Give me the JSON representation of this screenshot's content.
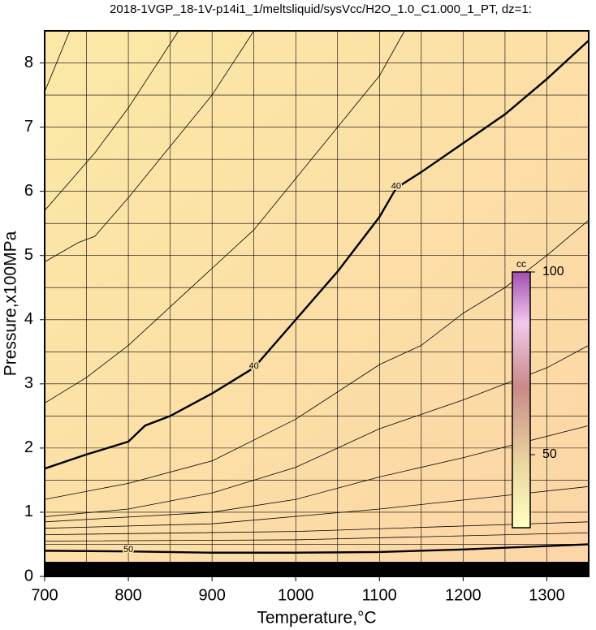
{
  "chart_data": {
    "type": "contour",
    "title": "2018-1VGP_18-1V-p14i1_1/meltsliquid/sysVcc/H2O_1.0_C1.000_1_PT, dz=1:",
    "x_label": "Temperature,°C",
    "y_label": "Pressure,x100MPa",
    "xlim": [
      700,
      1350
    ],
    "ylim": [
      0,
      8.5
    ],
    "xticks": [
      700,
      800,
      900,
      1000,
      1100,
      1200,
      1300
    ],
    "yticks": [
      0,
      1,
      2,
      3,
      4,
      5,
      6,
      7,
      8
    ],
    "xgrid": [
      750,
      800,
      850,
      900,
      950,
      1000,
      1050,
      1100,
      1150,
      1200,
      1250,
      1300
    ],
    "ygrid": [
      0.5,
      1,
      1.5,
      2,
      2.5,
      3,
      3.5,
      4,
      4.5,
      5,
      5.5,
      6,
      6.5,
      7,
      7.5,
      8
    ],
    "contours": [
      {
        "label": "40",
        "x": [
          700,
          750,
          800,
          820,
          850,
          900,
          950,
          1000,
          1050,
          1100,
          1120,
          1150,
          1200,
          1250,
          1300,
          1350
        ],
        "y": [
          1.68,
          1.9,
          2.1,
          2.35,
          2.5,
          2.85,
          3.25,
          4.0,
          4.75,
          5.6,
          6.05,
          6.3,
          6.75,
          7.2,
          7.75,
          8.35
        ]
      },
      {
        "label": "50",
        "x": [
          700,
          800,
          900,
          1000,
          1100,
          1200,
          1350
        ],
        "y": [
          0.4,
          0.39,
          0.37,
          0.37,
          0.38,
          0.42,
          0.5
        ]
      },
      {
        "x": [
          700,
          730
        ],
        "y": [
          7.55,
          8.5
        ]
      },
      {
        "x": [
          700,
          760,
          800,
          860
        ],
        "y": [
          5.7,
          6.6,
          7.3,
          8.5
        ]
      },
      {
        "x": [
          700,
          740,
          760,
          800,
          850,
          900,
          950
        ],
        "y": [
          4.9,
          5.2,
          5.3,
          5.9,
          6.7,
          7.5,
          8.5
        ]
      },
      {
        "x": [
          700,
          750,
          800,
          850,
          900,
          950,
          1000,
          1050,
          1100,
          1130
        ],
        "y": [
          2.7,
          3.1,
          3.6,
          4.2,
          4.8,
          5.4,
          6.2,
          7.0,
          7.8,
          8.5
        ]
      },
      {
        "x": [
          700,
          800,
          900,
          1000,
          1100,
          1150,
          1200,
          1250,
          1300,
          1350
        ],
        "y": [
          1.2,
          1.45,
          1.8,
          2.45,
          3.3,
          3.6,
          4.1,
          4.5,
          5.0,
          5.55
        ]
      },
      {
        "x": [
          700,
          800,
          900,
          1000,
          1100,
          1200,
          1300,
          1350
        ],
        "y": [
          0.93,
          1.05,
          1.3,
          1.7,
          2.3,
          2.75,
          3.25,
          3.6
        ]
      },
      {
        "x": [
          700,
          900,
          1000,
          1100,
          1200,
          1350
        ],
        "y": [
          0.85,
          1.0,
          1.2,
          1.55,
          1.85,
          2.35
        ]
      },
      {
        "x": [
          700,
          900,
          1100,
          1350
        ],
        "y": [
          0.75,
          0.82,
          1.05,
          1.4
        ]
      },
      {
        "x": [
          700,
          1000,
          1350
        ],
        "y": [
          0.65,
          0.7,
          0.85
        ]
      },
      {
        "x": [
          700,
          1000,
          1350
        ],
        "y": [
          0.55,
          0.57,
          0.68
        ]
      }
    ],
    "colorbar": {
      "label": "cc",
      "lim": [
        30,
        100
      ],
      "ticks": [
        50,
        100
      ]
    }
  }
}
